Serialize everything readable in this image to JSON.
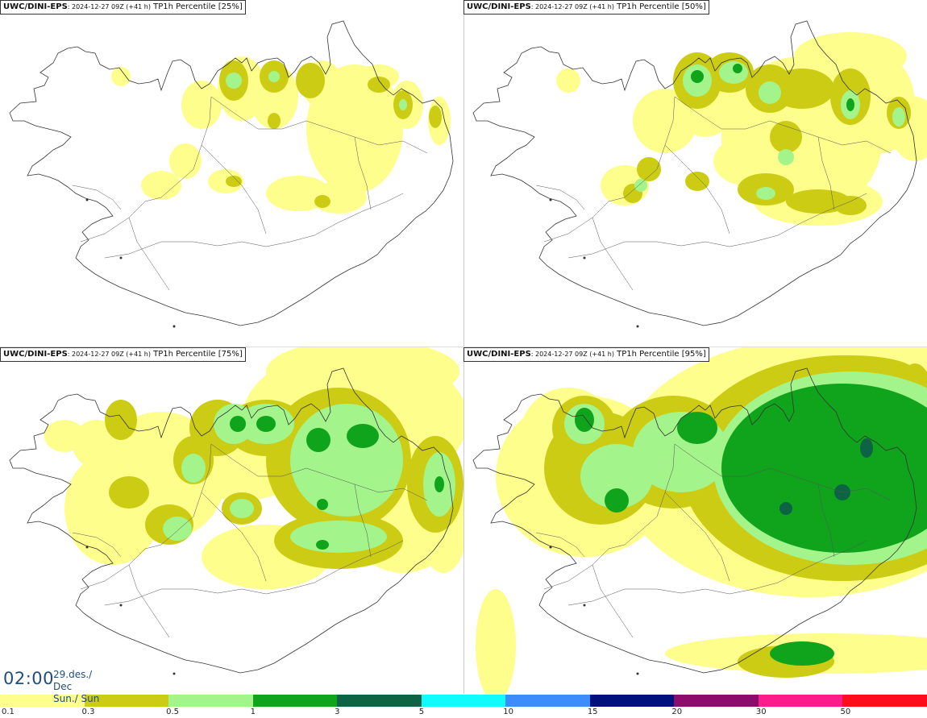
{
  "panels": [
    {
      "model": "UWC/DINI-EPS",
      "run": ": 2024-12-27 09Z (+41 h)",
      "param": " TP1h Percentile [25%]"
    },
    {
      "model": "UWC/DINI-EPS",
      "run": ": 2024-12-27 09Z (+41 h)",
      "param": " TP1h Percentile [50%]"
    },
    {
      "model": "UWC/DINI-EPS",
      "run": ": 2024-12-27 09Z (+41 h)",
      "param": " TP1h Percentile [75%]"
    },
    {
      "model": "UWC/DINI-EPS",
      "run": ": 2024-12-27 09Z (+41 h)",
      "param": " TP1h Percentile [95%]"
    }
  ],
  "valid_time": {
    "time": "02:00",
    "date_line1": "29.des./ Dec",
    "date_line2": "Sun./ Sun"
  },
  "legend": {
    "colors": [
      "#fefe8c",
      "#cccc14",
      "#a4f48c",
      "#10a41c",
      "#0c6444",
      "#10fcfc",
      "#3c8cfc",
      "#00107c",
      "#8c0c6c",
      "#fc1c8c",
      "#fc0c1c"
    ],
    "labels": [
      "0.1",
      "0.3",
      "0.5",
      "1",
      "3",
      "5",
      "10",
      "15",
      "20",
      "30",
      "50"
    ]
  }
}
